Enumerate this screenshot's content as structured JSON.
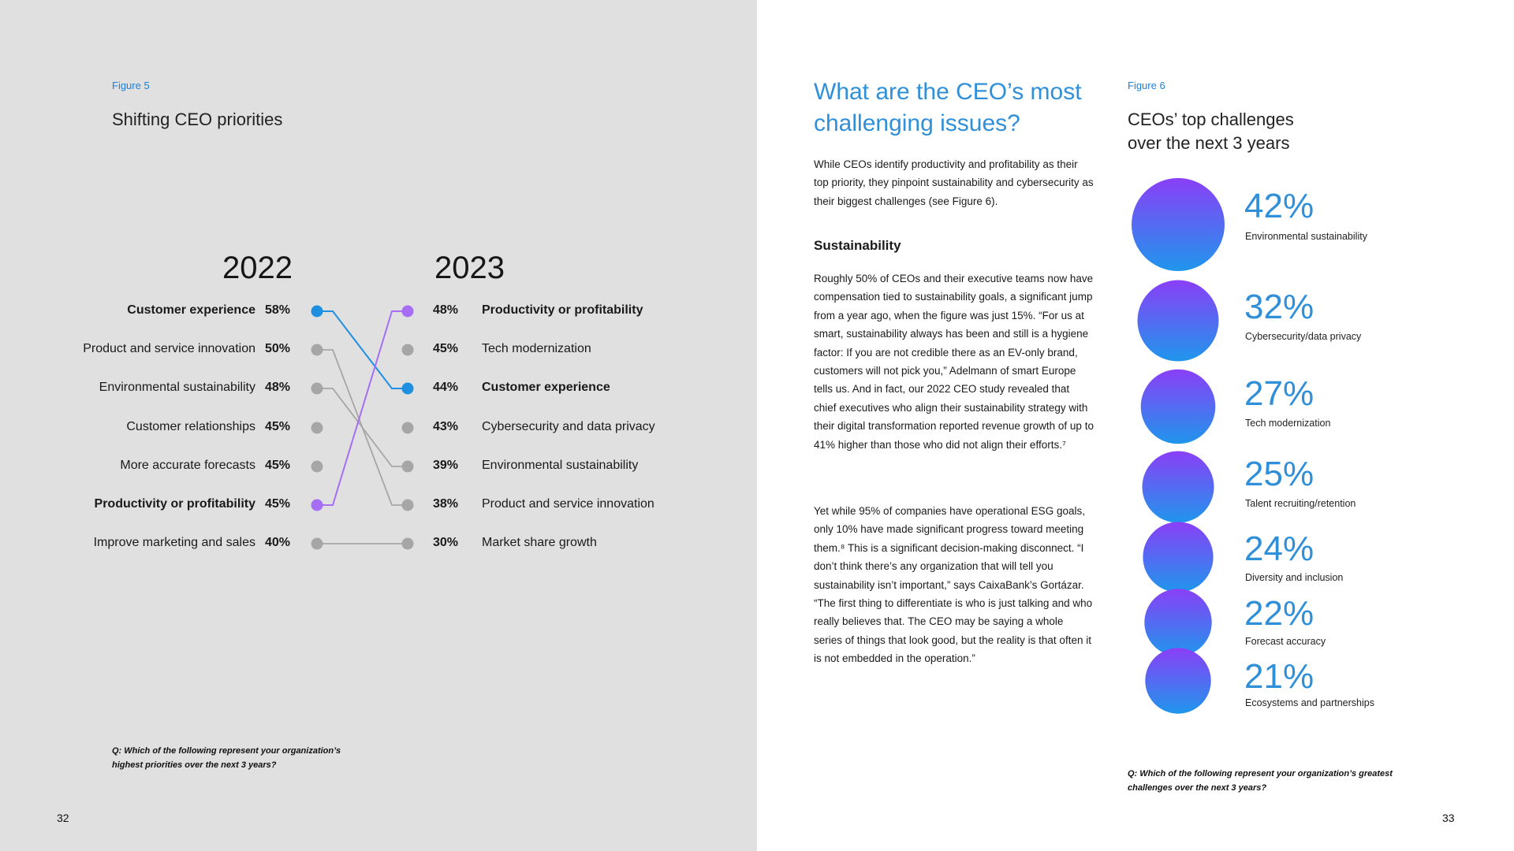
{
  "left_page": {
    "figure_label": "Figure 5",
    "figure_title": "Shifting CEO priorities",
    "footnote": "Q: Which of the following represent your organization’s highest priorities over the next 3 years?",
    "page_number": "32"
  },
  "chart_data": [
    {
      "type": "slope",
      "title": "Shifting CEO priorities",
      "years": [
        "2022",
        "2023"
      ],
      "left": [
        {
          "label": "Customer experience",
          "pct": "58%",
          "value": 58,
          "highlight": "blue"
        },
        {
          "label": "Product and service innovation",
          "pct": "50%",
          "value": 50,
          "highlight": ""
        },
        {
          "label": "Environmental sustainability",
          "pct": "48%",
          "value": 48,
          "highlight": ""
        },
        {
          "label": "Customer relationships",
          "pct": "45%",
          "value": 45,
          "highlight": ""
        },
        {
          "label": "More accurate forecasts",
          "pct": "45%",
          "value": 45,
          "highlight": ""
        },
        {
          "label": "Productivity or profitability",
          "pct": "45%",
          "value": 45,
          "highlight": "purple"
        },
        {
          "label": "Improve marketing and sales",
          "pct": "40%",
          "value": 40,
          "highlight": ""
        }
      ],
      "right": [
        {
          "label": "Productivity or profitability",
          "pct": "48%",
          "value": 48,
          "highlight": "purple"
        },
        {
          "label": "Tech modernization",
          "pct": "45%",
          "value": 45,
          "highlight": ""
        },
        {
          "label": "Customer experience",
          "pct": "44%",
          "value": 44,
          "highlight": "blue"
        },
        {
          "label": "Cybersecurity and data privacy",
          "pct": "43%",
          "value": 43,
          "highlight": ""
        },
        {
          "label": "Environmental sustainability",
          "pct": "39%",
          "value": 39,
          "highlight": ""
        },
        {
          "label": "Product and service innovation",
          "pct": "38%",
          "value": 38,
          "highlight": ""
        },
        {
          "label": "Market share growth",
          "pct": "30%",
          "value": 30,
          "highlight": ""
        }
      ],
      "links": [
        [
          0,
          2,
          "blue"
        ],
        [
          1,
          5,
          "gray"
        ],
        [
          2,
          4,
          "gray"
        ],
        [
          5,
          0,
          "purple"
        ],
        [
          6,
          6,
          "gray"
        ]
      ]
    },
    {
      "type": "bubble",
      "title": "CEOs’ top challenges over the next 3 years",
      "items": [
        {
          "label": "Environmental sustainability",
          "pct": "42%",
          "value": 42
        },
        {
          "label": "Cybersecurity/data privacy",
          "pct": "32%",
          "value": 32
        },
        {
          "label": "Tech modernization",
          "pct": "27%",
          "value": 27
        },
        {
          "label": "Talent recruiting/retention",
          "pct": "25%",
          "value": 25
        },
        {
          "label": "Diversity and inclusion",
          "pct": "24%",
          "value": 24
        },
        {
          "label": "Forecast accuracy",
          "pct": "22%",
          "value": 22
        },
        {
          "label": "Ecosystems and partnerships",
          "pct": "21%",
          "value": 21
        }
      ]
    }
  ],
  "right_page": {
    "heading": "What are the CEO’s most challenging issues?",
    "intro": "While CEOs identify productivity and profitability as their top priority, they pinpoint sustainability and cybersecurity as their biggest challenges (see Figure 6).",
    "subhead": "Sustainability",
    "para1": "Roughly 50% of CEOs and their executive teams now have compensation tied to sustainability goals, a significant jump from a year ago, when the figure was just 15%. “For us at smart, sustainability always has been and still is a hygiene factor: If you are not credible there as an EV-only brand, customers will not pick you,” Adelmann of smart Europe tells us. And in fact, our 2022 CEO study revealed that chief executives who align their sustainability strategy with their digital transformation reported revenue growth of up to 41% higher than those who did not align their efforts.⁷",
    "para2": "Yet while 95% of companies have operational ESG goals, only 10% have made significant progress toward meeting them.⁸ This is a significant decision-making disconnect. “I don’t think there’s any organization that will tell you sustainability isn’t important,” says CaixaBank’s Gortázar. “The first thing to differentiate is who is just talking and who really believes that. The CEO may be saying a whole series of things that look good, but the reality is that often it is not embedded in the operation.”",
    "figure_label": "Figure 6",
    "figure_title_line1": "CEOs’ top challenges",
    "figure_title_line2": "over the next 3 years",
    "footnote": "Q: Which of the following represent your organization’s greatest challenges over the next 3 years?",
    "page_number": "33"
  },
  "colors": {
    "blue": "#1f8fe0",
    "purple": "#a56ef5",
    "gray": "#a6a6a6",
    "bubble_top": "#8a3ff7",
    "bubble_bottom": "#1f96ec",
    "accent_text": "#2f8fd8"
  }
}
